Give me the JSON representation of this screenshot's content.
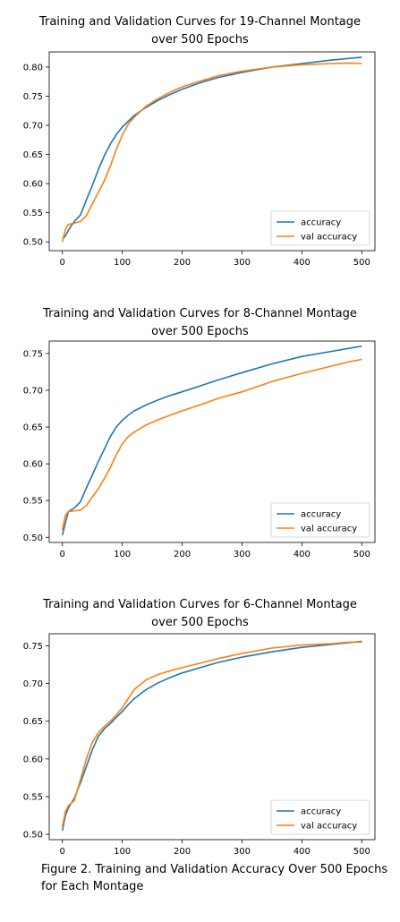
{
  "caption": "Figure 2. Training and Validation Accuracy Over 500 Epochs for Each Montage",
  "colors": {
    "accuracy": "#1f77b4",
    "val_accuracy": "#ff7f0e"
  },
  "chart_data": [
    {
      "type": "line",
      "title_line1": "Training  and Validation  Curves for 19-Channel  Montage",
      "title_line2": "over 500  Epochs",
      "xlim": [
        -22,
        522
      ],
      "ylim": [
        0.485,
        0.826
      ],
      "xticks": [
        0,
        100,
        200,
        300,
        400,
        500
      ],
      "yticks": [
        0.5,
        0.55,
        0.6,
        0.65,
        0.7,
        0.75,
        0.8
      ],
      "legend_placement": "lower-right",
      "series": [
        {
          "name": "accuracy",
          "x": [
            0,
            5,
            10,
            15,
            20,
            30,
            40,
            50,
            60,
            70,
            80,
            90,
            100,
            110,
            120,
            140,
            160,
            180,
            200,
            230,
            260,
            300,
            350,
            400,
            450,
            500
          ],
          "y": [
            0.505,
            0.51,
            0.52,
            0.528,
            0.535,
            0.546,
            0.572,
            0.597,
            0.624,
            0.648,
            0.668,
            0.684,
            0.697,
            0.707,
            0.717,
            0.731,
            0.743,
            0.753,
            0.762,
            0.773,
            0.782,
            0.791,
            0.8,
            0.806,
            0.812,
            0.817
          ]
        },
        {
          "name": "val accuracy",
          "x": [
            0,
            5,
            10,
            20,
            30,
            40,
            50,
            60,
            70,
            80,
            90,
            100,
            110,
            120,
            140,
            160,
            180,
            200,
            230,
            260,
            300,
            350,
            400,
            450,
            480,
            500
          ],
          "y": [
            0.5,
            0.522,
            0.53,
            0.532,
            0.535,
            0.545,
            0.565,
            0.585,
            0.605,
            0.63,
            0.658,
            0.683,
            0.702,
            0.714,
            0.733,
            0.746,
            0.757,
            0.766,
            0.776,
            0.785,
            0.793,
            0.8,
            0.804,
            0.806,
            0.807,
            0.806
          ]
        }
      ]
    },
    {
      "type": "line",
      "title_line1": "Training  and Validation  Curves for 8-Channel  Montage",
      "title_line2": "over 500  Epochs",
      "xlim": [
        -22,
        522
      ],
      "ylim": [
        0.493,
        0.767
      ],
      "xticks": [
        0,
        100,
        200,
        300,
        400,
        500
      ],
      "yticks": [
        0.5,
        0.55,
        0.6,
        0.65,
        0.7,
        0.75
      ],
      "legend_placement": "lower-right",
      "series": [
        {
          "name": "accuracy",
          "x": [
            0,
            5,
            10,
            20,
            30,
            40,
            50,
            60,
            70,
            80,
            90,
            100,
            110,
            120,
            140,
            160,
            180,
            200,
            230,
            260,
            300,
            350,
            400,
            450,
            500
          ],
          "y": [
            0.503,
            0.52,
            0.535,
            0.54,
            0.548,
            0.567,
            0.585,
            0.603,
            0.62,
            0.637,
            0.65,
            0.659,
            0.666,
            0.672,
            0.68,
            0.687,
            0.693,
            0.698,
            0.706,
            0.714,
            0.724,
            0.736,
            0.746,
            0.753,
            0.76
          ]
        },
        {
          "name": "val accuracy",
          "x": [
            0,
            5,
            10,
            20,
            30,
            40,
            50,
            60,
            70,
            80,
            90,
            100,
            110,
            120,
            140,
            160,
            180,
            200,
            230,
            260,
            300,
            350,
            400,
            450,
            480,
            500
          ],
          "y": [
            0.51,
            0.53,
            0.535,
            0.536,
            0.537,
            0.543,
            0.555,
            0.566,
            0.58,
            0.595,
            0.612,
            0.627,
            0.637,
            0.643,
            0.653,
            0.66,
            0.666,
            0.672,
            0.68,
            0.689,
            0.698,
            0.712,
            0.723,
            0.733,
            0.739,
            0.742
          ]
        }
      ]
    },
    {
      "type": "line",
      "title_line1": "Training  and Validation  Curves for 6-Channel  Montage",
      "title_line2": "over 500  Epochs",
      "xlim": [
        -22,
        522
      ],
      "ylim": [
        0.493,
        0.766
      ],
      "xticks": [
        0,
        100,
        200,
        300,
        400,
        500
      ],
      "yticks": [
        0.5,
        0.55,
        0.6,
        0.65,
        0.7,
        0.75
      ],
      "legend_placement": "lower-right",
      "series": [
        {
          "name": "accuracy",
          "x": [
            0,
            5,
            10,
            20,
            30,
            40,
            50,
            60,
            70,
            80,
            90,
            100,
            110,
            120,
            140,
            160,
            180,
            200,
            230,
            260,
            300,
            350,
            400,
            450,
            500
          ],
          "y": [
            0.505,
            0.525,
            0.535,
            0.548,
            0.568,
            0.59,
            0.612,
            0.63,
            0.64,
            0.647,
            0.655,
            0.663,
            0.672,
            0.68,
            0.692,
            0.701,
            0.708,
            0.714,
            0.721,
            0.728,
            0.735,
            0.742,
            0.748,
            0.752,
            0.756
          ]
        },
        {
          "name": "val accuracy",
          "x": [
            0,
            5,
            10,
            20,
            30,
            40,
            50,
            60,
            70,
            80,
            90,
            100,
            110,
            120,
            140,
            160,
            180,
            200,
            230,
            260,
            300,
            350,
            400,
            450,
            480,
            500
          ],
          "y": [
            0.51,
            0.53,
            0.538,
            0.545,
            0.572,
            0.6,
            0.622,
            0.635,
            0.643,
            0.65,
            0.658,
            0.668,
            0.68,
            0.692,
            0.705,
            0.712,
            0.717,
            0.721,
            0.727,
            0.733,
            0.74,
            0.747,
            0.751,
            0.753,
            0.755,
            0.755
          ]
        }
      ]
    }
  ]
}
